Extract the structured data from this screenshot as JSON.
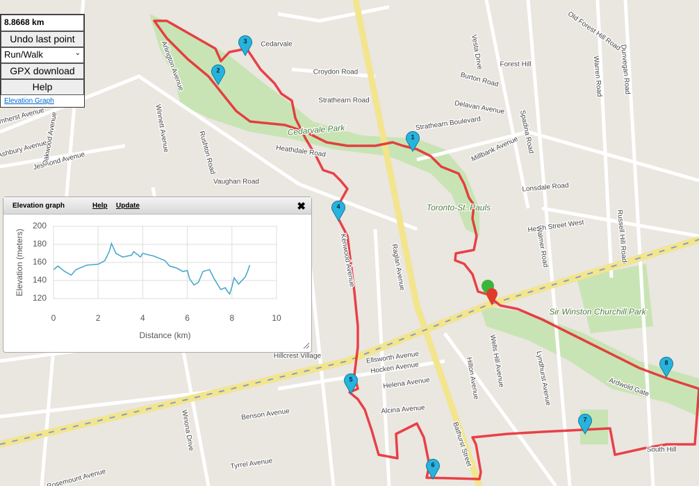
{
  "controls": {
    "distance": "8.8668 km",
    "undo": "Undo last point",
    "mode": "Run/Walk",
    "gpx": "GPX download",
    "help": "Help",
    "elevation_link": "Elevation Graph"
  },
  "markers": [
    "1",
    "2",
    "3",
    "4",
    "5",
    "6",
    "7",
    "8"
  ],
  "map_labels": [
    "Cedarvale",
    "Forest Hill",
    "Croydon Road",
    "Strathearn Road",
    "Cedarvale Park",
    "Heathdale Road",
    "Vaughan Road",
    "Toronto-St. Pauls",
    "Lonsdale Road",
    "Heath Street West",
    "Sir Winston Churchill Park",
    "Hillcrest Village",
    "Ellsworth Avenue",
    "Hocken Avenue",
    "Helena Avenue",
    "Alcina Avenue",
    "Benson Avenue",
    "Tyrrel Avenue",
    "Bathurst Street",
    "Spadina Road",
    "Vesta Drive",
    "Burton Road",
    "Delavan Avenue",
    "Strathearn Boulevard",
    "Millbank Avenue",
    "Old Forest Hill Road",
    "Warren Road",
    "Dunvegan Road",
    "Russell Hill Road",
    "Walmer Road",
    "Wells Hill Avenue",
    "Lyndhurst Avenue",
    "South Hill",
    "Rushton Road",
    "Winnett Avenue",
    "Arlington Avenue",
    "Ashbury Avenue",
    "Jesmond Avenue",
    "Amherst Avenue",
    "Oakwood Avenue",
    "Kenwood Avenue",
    "Raglan Avenue",
    "Ardwold Gate",
    "Hilton Avenue",
    "Rosemount Avenue",
    "Winona Drive"
  ],
  "elevation_panel": {
    "title": "Elevation graph",
    "help": "Help",
    "update": "Update"
  },
  "chart_data": {
    "type": "line",
    "xlabel": "Distance (km)",
    "ylabel": "Elevation (meters)",
    "x": [
      0,
      0.2,
      0.5,
      0.8,
      1.0,
      1.5,
      2.0,
      2.3,
      2.5,
      2.6,
      2.8,
      3.1,
      3.5,
      3.6,
      3.9,
      4.0,
      4.5,
      5.0,
      5.2,
      5.5,
      5.8,
      6.0,
      6.1,
      6.3,
      6.5,
      6.7,
      7.0,
      7.2,
      7.5,
      7.7,
      7.8,
      7.9,
      8.0,
      8.1,
      8.3,
      8.6,
      8.7,
      8.8
    ],
    "values": [
      152,
      156,
      150,
      146,
      152,
      157,
      158,
      162,
      172,
      181,
      170,
      166,
      168,
      172,
      166,
      170,
      167,
      162,
      156,
      154,
      150,
      151,
      142,
      135,
      138,
      150,
      152,
      142,
      130,
      132,
      128,
      125,
      133,
      143,
      136,
      144,
      150,
      157
    ],
    "color": "#4aa8cc",
    "xlim": [
      0,
      10
    ],
    "ylim": [
      120,
      200
    ],
    "xticks": [
      0,
      2,
      4,
      6,
      8,
      10
    ],
    "yticks": [
      120,
      140,
      160,
      180,
      200
    ],
    "grid": true
  }
}
